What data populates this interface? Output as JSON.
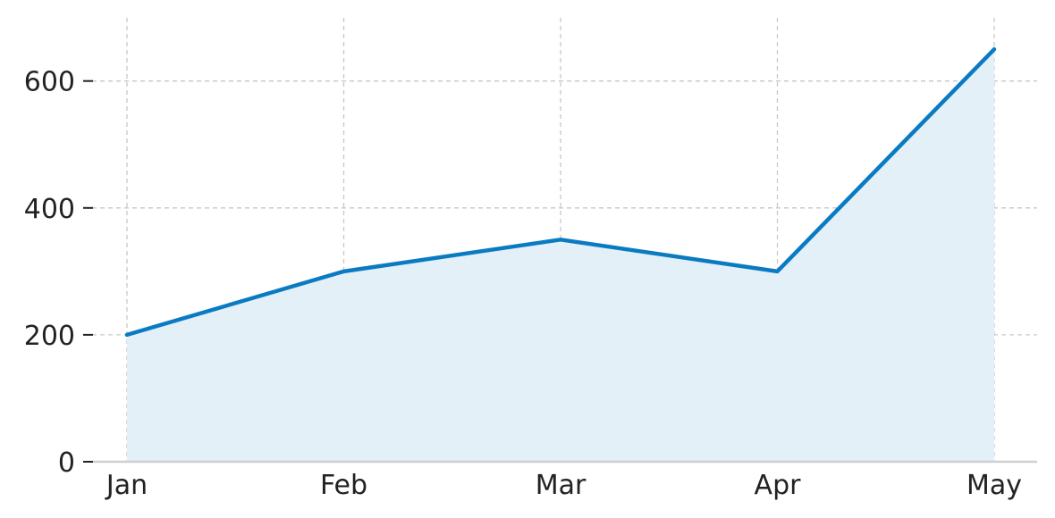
{
  "chart_data": {
    "type": "area",
    "categories": [
      "Jan",
      "Feb",
      "Mar",
      "Apr",
      "May"
    ],
    "series": [
      {
        "values": [
          200,
          300,
          350,
          300,
          650
        ]
      }
    ],
    "yticks": [
      "0",
      "200",
      "400",
      "600"
    ],
    "ylim": [
      0,
      700
    ],
    "grid": true,
    "line_color": "#0a7bc2",
    "fill_color": "#e3f0f8"
  }
}
